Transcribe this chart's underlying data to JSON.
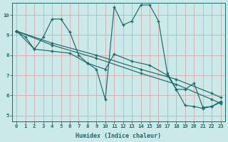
{
  "xlabel": "Humidex (Indice chaleur)",
  "ylabel": "",
  "bg_color": "#cce9e9",
  "line_color": "#1a6b6b",
  "grid_color": "#b8d8d8",
  "xlim": [
    -0.5,
    23.5
  ],
  "ylim": [
    4.7,
    10.6
  ],
  "xticks": [
    0,
    1,
    2,
    3,
    4,
    5,
    6,
    7,
    8,
    9,
    10,
    11,
    12,
    13,
    14,
    15,
    16,
    17,
    18,
    19,
    20,
    21,
    22,
    23
  ],
  "yticks": [
    5,
    6,
    7,
    8,
    9,
    10
  ],
  "series": [
    {
      "x": [
        0,
        1,
        2,
        3,
        4,
        5,
        6,
        7,
        8,
        9,
        10,
        11,
        12,
        13,
        14,
        15,
        16,
        17,
        18,
        19,
        20,
        21,
        22,
        23
      ],
      "y": [
        9.2,
        8.9,
        8.3,
        8.9,
        9.8,
        9.8,
        9.15,
        8.0,
        7.6,
        7.3,
        5.8,
        10.4,
        9.5,
        9.7,
        10.5,
        10.5,
        9.7,
        7.1,
        6.3,
        6.3,
        6.6,
        5.4,
        5.45,
        5.7
      ]
    },
    {
      "x": [
        0,
        4,
        9,
        14,
        18,
        22,
        23
      ],
      "y": [
        9.2,
        8.6,
        8.0,
        7.3,
        6.8,
        6.1,
        5.9
      ]
    },
    {
      "x": [
        0,
        4,
        9,
        14,
        18,
        22,
        23
      ],
      "y": [
        9.2,
        8.5,
        7.85,
        7.1,
        6.55,
        5.8,
        5.6
      ]
    },
    {
      "x": [
        0,
        2,
        4,
        6,
        8,
        10,
        11,
        13,
        15,
        17,
        18,
        19,
        20,
        21,
        22,
        23
      ],
      "y": [
        9.2,
        8.3,
        8.2,
        8.1,
        7.6,
        7.3,
        8.05,
        7.7,
        7.5,
        7.0,
        6.3,
        5.5,
        5.45,
        5.35,
        5.45,
        5.65
      ]
    }
  ]
}
